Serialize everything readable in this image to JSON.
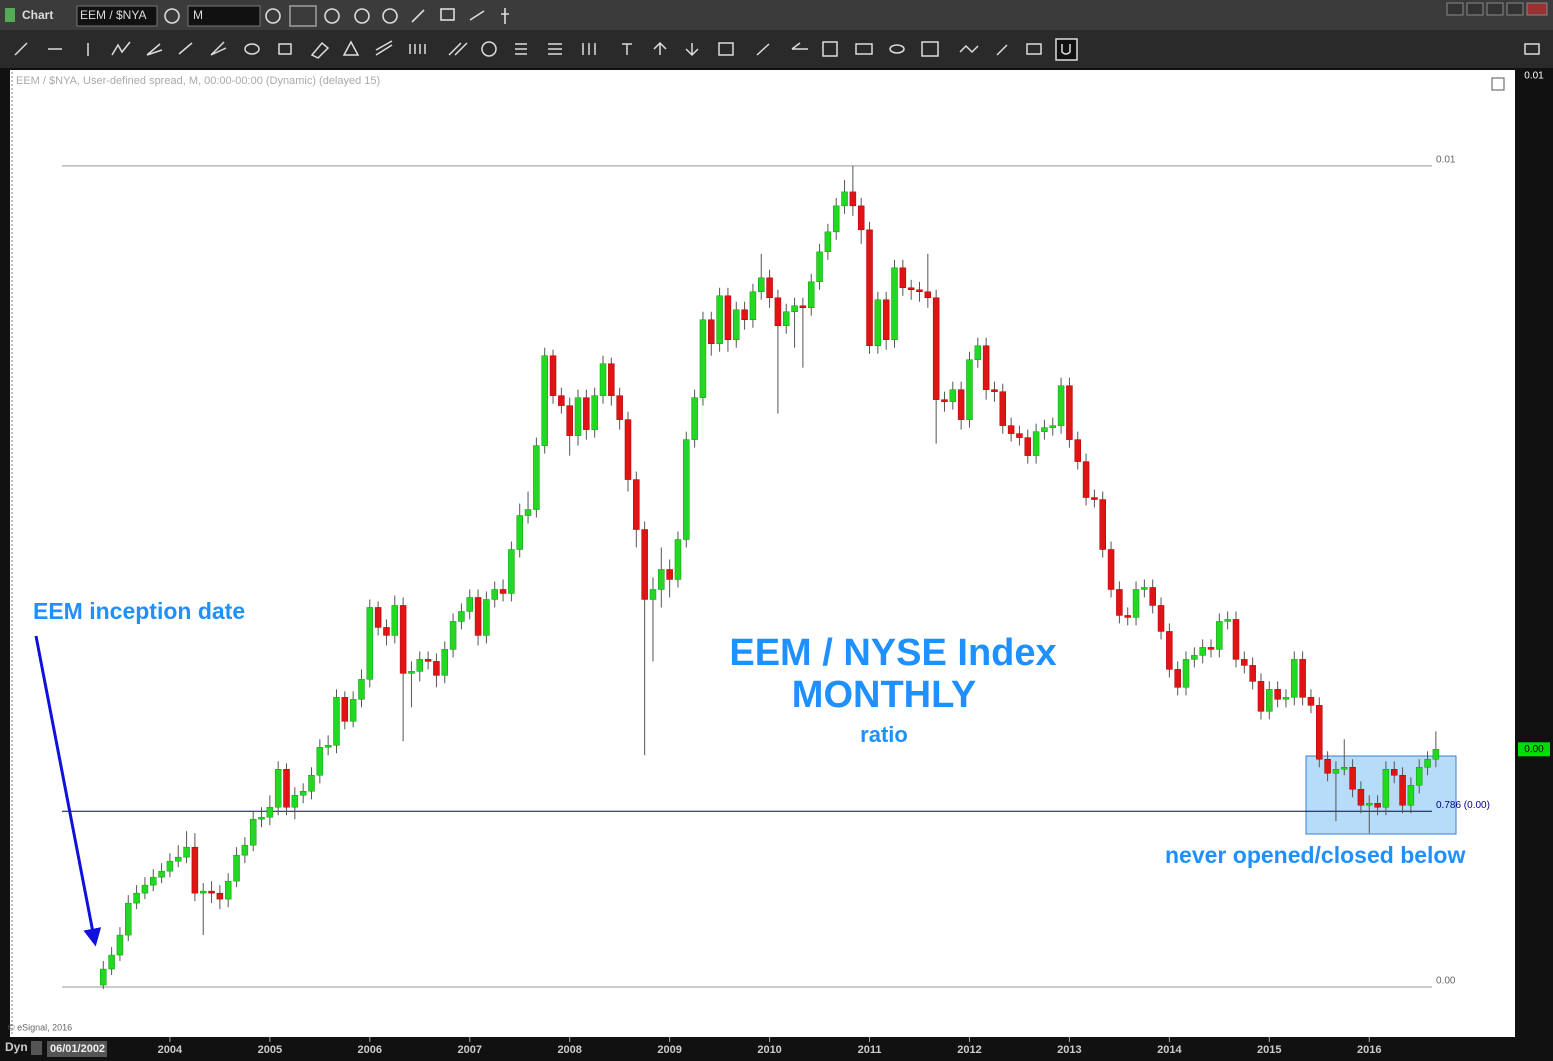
{
  "toolbar": {
    "title": "Chart",
    "symbol": "EEM / $NYA",
    "interval": "M"
  },
  "chart_data": {
    "type": "candlestick",
    "subtitle": "EEM / $NYA, User-defined spread, M, 00:00-00:00 (Dynamic) (delayed 15)",
    "annotations": [
      "EEM inception date",
      "EEM / NYSE Index",
      "MONTHLY",
      "ratio",
      "never opened/closed below"
    ],
    "up_color": "#22d822",
    "down_color": "#e01414",
    "xlim": [
      -11.2,
      169.5
    ],
    "xticks": [
      {
        "value": 8,
        "label": "2004"
      },
      {
        "value": 20,
        "label": "2005"
      },
      {
        "value": 32,
        "label": "2006"
      },
      {
        "value": 44,
        "label": "2007"
      },
      {
        "value": 56,
        "label": "2008"
      },
      {
        "value": 68,
        "label": "2009"
      },
      {
        "value": 80,
        "label": "2010"
      },
      {
        "value": 92,
        "label": "2011"
      },
      {
        "value": 104,
        "label": "2012"
      },
      {
        "value": 116,
        "label": "2013"
      },
      {
        "value": 128,
        "label": "2014"
      },
      {
        "value": 140,
        "label": "2015"
      },
      {
        "value": 152,
        "label": "2016"
      }
    ],
    "ylim": [
      0.00125,
      0.00609
    ],
    "yticks": [
      {
        "value": 0.00561,
        "label": "0.01"
      },
      {
        "value": 0.0015,
        "label": "0.00"
      }
    ],
    "axis_top": {
      "value": 0.00606,
      "label": "0.01"
    },
    "last_price": {
      "value": 0.00269,
      "label": "0.00",
      "color": "#00dd00"
    },
    "reference_lines": [
      {
        "value": 0.00238,
        "label": "0.786 (0.00)",
        "color": "#000080"
      }
    ],
    "open": [
      0.00151,
      0.00159,
      0.00166,
      0.00176,
      0.00192,
      0.00197,
      0.00201,
      0.00205,
      0.00208,
      0.00213,
      0.00215,
      0.0022,
      0.00197,
      0.00198,
      0.00197,
      0.00194,
      0.00203,
      0.00216,
      0.00221,
      0.00234,
      0.00235,
      0.0024,
      0.00259,
      0.0024,
      0.00246,
      0.00248,
      0.00256,
      0.0027,
      0.00271,
      0.00295,
      0.00283,
      0.00294,
      0.00304,
      0.0034,
      0.0033,
      0.00326,
      0.00341,
      0.00307,
      0.00308,
      0.00314,
      0.00313,
      0.00306,
      0.00319,
      0.00333,
      0.00338,
      0.00345,
      0.00326,
      0.00344,
      0.00349,
      0.00347,
      0.00369,
      0.00386,
      0.00389,
      0.00421,
      0.00466,
      0.00446,
      0.00441,
      0.00426,
      0.00445,
      0.00429,
      0.00446,
      0.00462,
      0.00446,
      0.00434,
      0.00404,
      0.00379,
      0.00344,
      0.00349,
      0.00359,
      0.00354,
      0.00374,
      0.00424,
      0.00445,
      0.00484,
      0.00472,
      0.00496,
      0.00474,
      0.00489,
      0.00484,
      0.00498,
      0.00505,
      0.00495,
      0.00481,
      0.00488,
      0.00491,
      0.0049,
      0.00503,
      0.00518,
      0.00528,
      0.00541,
      0.00548,
      0.00541,
      0.00529,
      0.00471,
      0.00494,
      0.00474,
      0.0051,
      0.005,
      0.00499,
      0.00498,
      0.00495,
      0.00444,
      0.00443,
      0.00449,
      0.00434,
      0.00464,
      0.00471,
      0.00449,
      0.00448,
      0.00431,
      0.00427,
      0.00425,
      0.00416,
      0.00428,
      0.0043,
      0.00431,
      0.00451,
      0.00424,
      0.00413,
      0.00395,
      0.00394,
      0.00369,
      0.00349,
      0.00336,
      0.00335,
      0.00349,
      0.0035,
      0.00341,
      0.00328,
      0.00309,
      0.003,
      0.00314,
      0.00316,
      0.0032,
      0.00319,
      0.00333,
      0.00334,
      0.00314,
      0.00311,
      0.00303,
      0.00288,
      0.00299,
      0.00294,
      0.00295,
      0.00314,
      0.00295,
      0.00291,
      0.00264,
      0.00257,
      0.00259,
      0.0026,
      0.00249,
      0.00241,
      0.00242,
      0.0024,
      0.00259,
      0.00256,
      0.00241,
      0.00251,
      0.0026,
      0.00264
    ],
    "high": [
      0.00163,
      0.0017,
      0.0018,
      0.00196,
      0.00201,
      0.00205,
      0.00209,
      0.00212,
      0.00217,
      0.00221,
      0.00228,
      0.00227,
      0.00202,
      0.00203,
      0.00201,
      0.00207,
      0.0022,
      0.00225,
      0.00238,
      0.0024,
      0.00246,
      0.00263,
      0.00262,
      0.0025,
      0.00252,
      0.0026,
      0.00274,
      0.00276,
      0.00299,
      0.00298,
      0.00298,
      0.00309,
      0.00344,
      0.00343,
      0.00334,
      0.00346,
      0.00345,
      0.00313,
      0.00318,
      0.00318,
      0.00317,
      0.00323,
      0.00337,
      0.00342,
      0.00349,
      0.00349,
      0.00348,
      0.00353,
      0.00354,
      0.00373,
      0.00392,
      0.00398,
      0.00425,
      0.0047,
      0.00469,
      0.0045,
      0.00445,
      0.00449,
      0.00449,
      0.0045,
      0.00466,
      0.00465,
      0.0045,
      0.00438,
      0.00408,
      0.00383,
      0.00355,
      0.0037,
      0.00364,
      0.00378,
      0.00428,
      0.00449,
      0.00488,
      0.00488,
      0.005,
      0.005,
      0.00493,
      0.00493,
      0.00502,
      0.00517,
      0.00509,
      0.00499,
      0.00492,
      0.00495,
      0.00495,
      0.00507,
      0.00522,
      0.00532,
      0.00545,
      0.00554,
      0.00561,
      0.00545,
      0.00533,
      0.00498,
      0.00498,
      0.00514,
      0.00514,
      0.00504,
      0.00503,
      0.00517,
      0.00499,
      0.00448,
      0.00453,
      0.00453,
      0.00468,
      0.00475,
      0.00475,
      0.00453,
      0.00452,
      0.00435,
      0.00431,
      0.00429,
      0.00432,
      0.00434,
      0.00435,
      0.00455,
      0.00455,
      0.00428,
      0.00417,
      0.00399,
      0.00398,
      0.00373,
      0.00353,
      0.0034,
      0.00353,
      0.00354,
      0.00354,
      0.00345,
      0.00332,
      0.00313,
      0.00318,
      0.0032,
      0.00324,
      0.00324,
      0.00337,
      0.00338,
      0.00338,
      0.00318,
      0.00315,
      0.00307,
      0.00303,
      0.00303,
      0.00299,
      0.00318,
      0.00318,
      0.00299,
      0.00295,
      0.00268,
      0.00263,
      0.00274,
      0.00264,
      0.00253,
      0.00246,
      0.00246,
      0.00263,
      0.00263,
      0.0026,
      0.00255,
      0.00264,
      0.00268,
      0.00278
    ],
    "low": [
      0.00149,
      0.00156,
      0.00163,
      0.00173,
      0.00189,
      0.00194,
      0.00198,
      0.00202,
      0.00205,
      0.0021,
      0.00212,
      0.00193,
      0.00176,
      0.00192,
      0.00189,
      0.0019,
      0.002,
      0.00212,
      0.00218,
      0.0023,
      0.00231,
      0.00236,
      0.00236,
      0.00234,
      0.00242,
      0.00244,
      0.00252,
      0.00266,
      0.00267,
      0.00279,
      0.0028,
      0.0029,
      0.003,
      0.00326,
      0.00321,
      0.00322,
      0.00273,
      0.0029,
      0.00303,
      0.00309,
      0.003,
      0.00302,
      0.00315,
      0.00329,
      0.00334,
      0.00321,
      0.00322,
      0.0034,
      0.00343,
      0.00343,
      0.00365,
      0.00382,
      0.00385,
      0.00417,
      0.00442,
      0.00437,
      0.00416,
      0.00421,
      0.00424,
      0.00425,
      0.00442,
      0.00441,
      0.00429,
      0.00398,
      0.0037,
      0.00266,
      0.00313,
      0.0034,
      0.00345,
      0.0035,
      0.0037,
      0.0042,
      0.00441,
      0.00466,
      0.00468,
      0.00468,
      0.0047,
      0.00479,
      0.0048,
      0.00494,
      0.0049,
      0.00437,
      0.00477,
      0.0047,
      0.0046,
      0.00486,
      0.00499,
      0.00514,
      0.00524,
      0.00537,
      0.00536,
      0.00522,
      0.00467,
      0.00467,
      0.00469,
      0.0047,
      0.00496,
      0.00494,
      0.00493,
      0.0049,
      0.00422,
      0.00438,
      0.00439,
      0.00429,
      0.0043,
      0.0046,
      0.00444,
      0.00443,
      0.00427,
      0.00423,
      0.00421,
      0.00412,
      0.00412,
      0.00424,
      0.00426,
      0.00427,
      0.0042,
      0.00409,
      0.00391,
      0.0039,
      0.00365,
      0.00345,
      0.00332,
      0.00331,
      0.00331,
      0.00345,
      0.00337,
      0.00324,
      0.00305,
      0.00296,
      0.00296,
      0.0031,
      0.00312,
      0.00315,
      0.00315,
      0.00329,
      0.0031,
      0.00307,
      0.00299,
      0.00284,
      0.00284,
      0.0029,
      0.0029,
      0.00291,
      0.00291,
      0.00287,
      0.0026,
      0.00253,
      0.00233,
      0.00256,
      0.00245,
      0.00237,
      0.00227,
      0.00236,
      0.00236,
      0.00252,
      0.00237,
      0.00237,
      0.00247,
      0.00256,
      0.0026
    ],
    "close": [
      0.00159,
      0.00166,
      0.00176,
      0.00192,
      0.00197,
      0.00201,
      0.00205,
      0.00208,
      0.00213,
      0.00215,
      0.0022,
      0.00197,
      0.00198,
      0.00197,
      0.00194,
      0.00203,
      0.00216,
      0.00221,
      0.00234,
      0.00235,
      0.0024,
      0.00259,
      0.0024,
      0.00246,
      0.00248,
      0.00256,
      0.0027,
      0.00271,
      0.00295,
      0.00283,
      0.00294,
      0.00304,
      0.0034,
      0.0033,
      0.00326,
      0.00341,
      0.00307,
      0.00308,
      0.00314,
      0.00313,
      0.00306,
      0.00319,
      0.00333,
      0.00338,
      0.00345,
      0.00326,
      0.00344,
      0.00349,
      0.00347,
      0.00369,
      0.00386,
      0.00389,
      0.00421,
      0.00466,
      0.00446,
      0.00441,
      0.00426,
      0.00445,
      0.00429,
      0.00446,
      0.00462,
      0.00446,
      0.00434,
      0.00404,
      0.00379,
      0.00344,
      0.00349,
      0.00359,
      0.00354,
      0.00374,
      0.00424,
      0.00445,
      0.00484,
      0.00472,
      0.00496,
      0.00474,
      0.00489,
      0.00484,
      0.00498,
      0.00505,
      0.00495,
      0.00481,
      0.00488,
      0.00491,
      0.0049,
      0.00503,
      0.00518,
      0.00528,
      0.00541,
      0.00548,
      0.00541,
      0.00529,
      0.00471,
      0.00494,
      0.00474,
      0.0051,
      0.005,
      0.00499,
      0.00498,
      0.00495,
      0.00444,
      0.00443,
      0.00449,
      0.00434,
      0.00464,
      0.00471,
      0.00449,
      0.00448,
      0.00431,
      0.00427,
      0.00425,
      0.00416,
      0.00428,
      0.0043,
      0.00431,
      0.00451,
      0.00424,
      0.00413,
      0.00395,
      0.00394,
      0.00369,
      0.00349,
      0.00336,
      0.00335,
      0.00349,
      0.0035,
      0.00341,
      0.00328,
      0.00309,
      0.003,
      0.00314,
      0.00316,
      0.0032,
      0.00319,
      0.00333,
      0.00334,
      0.00314,
      0.00311,
      0.00303,
      0.00288,
      0.00299,
      0.00294,
      0.00295,
      0.00314,
      0.00295,
      0.00291,
      0.00264,
      0.00257,
      0.00259,
      0.0026,
      0.00249,
      0.00241,
      0.00242,
      0.0024,
      0.00259,
      0.00256,
      0.00241,
      0.00251,
      0.0026,
      0.00264,
      0.00269
    ]
  },
  "footer": {
    "mode": "Dyn",
    "date": "06/01/2002",
    "copyright": "© eSignal, 2016"
  }
}
